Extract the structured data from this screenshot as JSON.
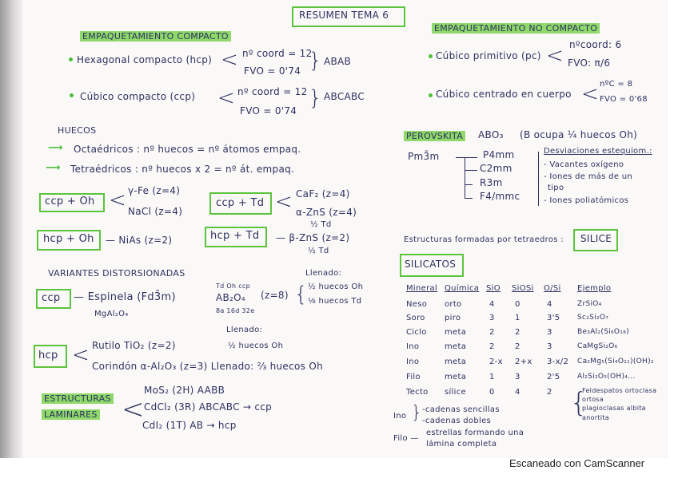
{
  "title": "RESUMEN TEMA 6",
  "left": {
    "compact_heading": "EMPAQUETAMIENTO COMPACTO",
    "hcp": {
      "label": "Hexagonal compacto (hcp)",
      "coord": "nº coord = 12",
      "fvo": "FVO = 0'74",
      "seq": "ABAB"
    },
    "ccp": {
      "label": "Cúbico compacto (ccp)",
      "coord": "nº coord = 12",
      "fvo": "FVO = 0'74",
      "seq": "ABCABC"
    },
    "huecos": {
      "heading": "HUECOS",
      "oct": "Octaédricos : nº huecos = nº átomos empaq.",
      "tet": "Tetraédricos : nº huecos x 2 = nº át. empaq."
    },
    "combos": {
      "ccp_oh": {
        "box": "ccp + Oh",
        "a": "γ-Fe (z=4)",
        "b": "NaCl (z=4)"
      },
      "ccp_td": {
        "box": "ccp + Td",
        "a": "CaF₂ (z=4)",
        "b": "α-ZnS (z=4)",
        "c": "½ Td"
      },
      "hcp_oh": {
        "box": "hcp + Oh",
        "a": "— NiAs (z=2)"
      },
      "hcp_td": {
        "box": "hcp + Td",
        "a": "— β-ZnS (z=2)",
        "c": "½ Td"
      }
    },
    "variantes": {
      "heading": "VARIANTES DISTORSIONADAS",
      "ccp_box": "ccp",
      "espinela": "— Espinela (Fd3̄m)",
      "mgal": "MgAl₂O₄",
      "ti_note": "Td Oh ccp",
      "ab2o4": "AB₂O₄",
      "sites": "8a 16d 32e",
      "z": "(z=8)",
      "llenado": "Llenado:",
      "fill1": "½ huecos Oh",
      "fill2": "⅛ huecos Td",
      "hcp_box": "hcp",
      "llenado2": "Llenado:",
      "rutilo": "Rutilo TiO₂ (z=2)",
      "rutilo_fill": "½ huecos Oh",
      "corindon": "Corindón α-Al₂O₃ (z=3)  Llenado: ⅔ huecos Oh"
    },
    "laminares": {
      "h1": "ESTRUCTURAS",
      "h2": "LAMINARES",
      "a": "MoS₂ (2H)  AABB",
      "b": "CdCl₂ (3R)  ABCABC → ccp",
      "c": "CdI₂ (1T)  AB → hcp"
    }
  },
  "right": {
    "noncompact_heading": "EMPAQUETAMIENTO NO COMPACTO",
    "pc": {
      "label": "Cúbico primitivo (pc)",
      "coord": "nºcoord: 6",
      "fvo": "FVO: π/6"
    },
    "bcc": {
      "label": "Cúbico centrado en cuerpo",
      "coord": "nºC = 8",
      "fvo": "FVO = 0'68"
    },
    "perovskita": {
      "heading": "PEROVSKITA",
      "formula": "ABO₃",
      "note": "(B ocupa ¼ huecos Oh)",
      "group": "Pm3̄m",
      "subgroups": [
        "P4mm",
        "C2mm",
        "R3m",
        "F4/mmc"
      ],
      "desv_title": "Desviaciones estequiom.:",
      "desv": [
        "- Vacantes oxígeno",
        "- Iones de más de un",
        "tipo",
        "- Iones poliatómicos"
      ]
    },
    "tetra_text": "Estructuras formadas por tetraedros :",
    "silice": "SILICE",
    "silicatos": "SILICATOS",
    "table": {
      "headers": [
        "Mineral",
        "Química",
        "SiO",
        "SiOSi",
        "O/Si",
        "Ejemplo"
      ],
      "rows": [
        [
          "Neso",
          "orto",
          "4",
          "0",
          "4",
          "ZrSiO₄"
        ],
        [
          "Soro",
          "piro",
          "3",
          "1",
          "3'5",
          "Sc₂Si₂O₇"
        ],
        [
          "Ciclo",
          "meta",
          "2",
          "2",
          "3",
          "Be₃Al₂(Si₆O₁₈)"
        ],
        [
          "Ino",
          "meta",
          "2",
          "2",
          "3",
          "CaMgSi₂O₆"
        ],
        [
          "Ino",
          "meta",
          "2-x",
          "2+x",
          "3-x/2",
          "Ca₂Mg₅(Si₄O₁₁)(OH)₂"
        ],
        [
          "Filo",
          "meta",
          "1",
          "3",
          "2'5",
          "Al₂Si₂O₅(OH)₄..."
        ],
        [
          "Tecto",
          "sílice",
          "0",
          "4",
          "2",
          ""
        ]
      ],
      "tecto_examples": [
        "Feldespatos ortoclasa",
        "ortosa",
        "plagioclasas albita",
        "anortita"
      ]
    },
    "ino_note": {
      "label": "Ino",
      "a": "-cadenas sencillas",
      "b": "-cadenas dobles"
    },
    "filo_note": {
      "label": "Filo —",
      "a": "estrellas formando una",
      "b": "lámina completa"
    }
  },
  "footer": "Escaneado con CamScanner",
  "colors": {
    "ink": "#2c3160",
    "highlight": "#8fd86a",
    "box": "#5cc43c"
  }
}
